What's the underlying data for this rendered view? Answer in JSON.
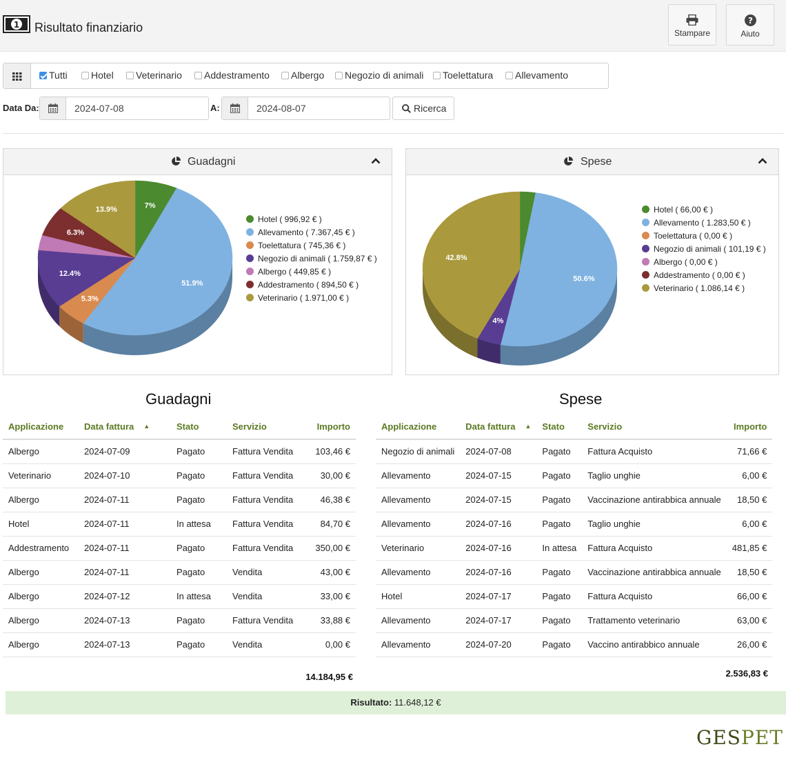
{
  "header": {
    "title": "Risultato finanziario",
    "print_label": "Stampare",
    "help_label": "Aiuto",
    "money_icon_text": "1"
  },
  "filters": [
    {
      "label": "Tutti",
      "checked": true
    },
    {
      "label": "Hotel",
      "checked": false
    },
    {
      "label": "Veterinario",
      "checked": false
    },
    {
      "label": "Addestramento",
      "checked": false
    },
    {
      "label": "Albergo",
      "checked": false
    },
    {
      "label": "Negozio di animali",
      "checked": false
    },
    {
      "label": "Toelettatura",
      "checked": false
    },
    {
      "label": "Allevamento",
      "checked": false
    }
  ],
  "dates": {
    "from_label": "Data Da:",
    "from_value": "2024-07-08",
    "to_label": "A:",
    "to_value": "2024-08-07",
    "search_label": "Ricerca"
  },
  "colors": {
    "Hotel": "#4b8a2e",
    "Allevamento": "#7fb2e0",
    "Toelettatura": "#d98a4e",
    "Negozio di animali": "#583d92",
    "Albergo": "#c07ab5",
    "Addestramento": "#7d2e2e",
    "Veterinario": "#aa9a3d",
    "header_green": "#5c7a23",
    "result_bg": "#dff0d8"
  },
  "chart_data": [
    {
      "type": "pie",
      "title": "Guadagni",
      "labels": [
        "Hotel",
        "Allevamento",
        "Toelettatura",
        "Negozio di animali",
        "Albergo",
        "Addestramento",
        "Veterinario"
      ],
      "values": [
        996.92,
        7367.45,
        745.36,
        1759.87,
        449.85,
        894.5,
        1971.0
      ],
      "legend": [
        "Hotel ( 996,92 € )",
        "Allevamento ( 7.367,45 € )",
        "Toelettatura ( 745,36 € )",
        "Negozio di animali ( 1.759,87 € )",
        "Albergo ( 449,85 € )",
        "Addestramento ( 894,50 € )",
        "Veterinario ( 1.971,00 € )"
      ],
      "data_labels": [
        "7%",
        "51.9%",
        "5.3%",
        "12.4%",
        "",
        "6.3%",
        "13.9%"
      ],
      "legend_position": "right"
    },
    {
      "type": "pie",
      "title": "Spese",
      "labels": [
        "Hotel",
        "Allevamento",
        "Toelettatura",
        "Negozio di animali",
        "Albergo",
        "Addestramento",
        "Veterinario"
      ],
      "values": [
        66.0,
        1283.5,
        0.0,
        101.19,
        0.0,
        0.0,
        1086.14
      ],
      "legend": [
        "Hotel ( 66,00 € )",
        "Allevamento ( 1.283,50 € )",
        "Toelettatura ( 0,00 € )",
        "Negozio di animali ( 101,19 € )",
        "Albergo ( 0,00 € )",
        "Addestramento ( 0,00 € )",
        "Veterinario ( 1.086,14 € )"
      ],
      "data_labels": [
        "",
        "50.6%",
        "",
        "4%",
        "",
        "",
        "42.8%"
      ],
      "legend_position": "right"
    }
  ],
  "tables": {
    "columns": [
      "Applicazione",
      "Data fattura",
      "Stato",
      "Servizio",
      "Importo"
    ],
    "guadagni": {
      "title": "Guadagni",
      "rows": [
        [
          "Albergo",
          "2024-07-09",
          "Pagato",
          "Fattura Vendita",
          "103,46 €"
        ],
        [
          "Veterinario",
          "2024-07-10",
          "Pagato",
          "Fattura Vendita",
          "30,00 €"
        ],
        [
          "Albergo",
          "2024-07-11",
          "Pagato",
          "Fattura Vendita",
          "46,38 €"
        ],
        [
          "Hotel",
          "2024-07-11",
          "In attesa",
          "Fattura Vendita",
          "84,70 €"
        ],
        [
          "Addestramento",
          "2024-07-11",
          "Pagato",
          "Fattura Vendita",
          "350,00 €"
        ],
        [
          "Albergo",
          "2024-07-11",
          "Pagato",
          "Vendita",
          "43,00 €"
        ],
        [
          "Albergo",
          "2024-07-12",
          "In attesa",
          "Vendita",
          "33,00 €"
        ],
        [
          "Albergo",
          "2024-07-13",
          "Pagato",
          "Fattura Vendita",
          "33,88 €"
        ],
        [
          "Albergo",
          "2024-07-13",
          "Pagato",
          "Vendita",
          "0,00 €"
        ]
      ],
      "total": "14.184,95 €"
    },
    "spese": {
      "title": "Spese",
      "rows": [
        [
          "Negozio di animali",
          "2024-07-08",
          "Pagato",
          "Fattura Acquisto",
          "71,66 €"
        ],
        [
          "Allevamento",
          "2024-07-15",
          "Pagato",
          "Taglio unghie",
          "6,00 €"
        ],
        [
          "Allevamento",
          "2024-07-15",
          "Pagato",
          "Vaccinazione antirabbica annuale",
          "18,50 €"
        ],
        [
          "Allevamento",
          "2024-07-16",
          "Pagato",
          "Taglio unghie",
          "6,00 €"
        ],
        [
          "Veterinario",
          "2024-07-16",
          "In attesa",
          "Fattura Acquisto",
          "481,85 €"
        ],
        [
          "Allevamento",
          "2024-07-16",
          "Pagato",
          "Vaccinazione antirabbica annuale",
          "18,50 €"
        ],
        [
          "Hotel",
          "2024-07-17",
          "Pagato",
          "Fattura Acquisto",
          "66,00 €"
        ],
        [
          "Allevamento",
          "2024-07-17",
          "Pagato",
          "Trattamento veterinario",
          "63,00 €"
        ],
        [
          "Allevamento",
          "2024-07-20",
          "Pagato",
          "Vaccino antirabbico annuale",
          "26,00 €"
        ]
      ],
      "total": "2.536,83 €"
    }
  },
  "result": {
    "label": "Risultato:",
    "value": "11.648,12 €"
  },
  "brand": {
    "part1": "GES",
    "part2": "PET",
    "color1": "#3d4a17",
    "color2": "#6b7d2a"
  }
}
